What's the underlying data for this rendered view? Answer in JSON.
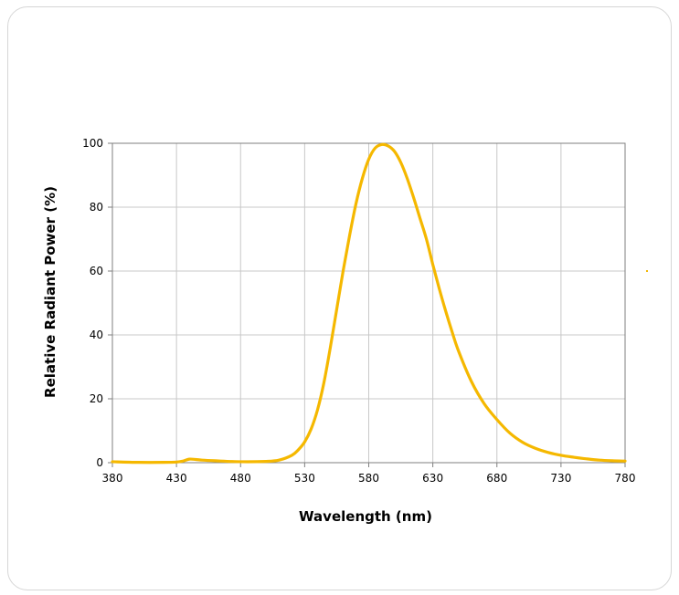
{
  "chart_data": {
    "type": "line",
    "title": "",
    "xlabel": "Wavelength (nm)",
    "ylabel": "Relative Radiant  Power (%)",
    "xlim": [
      380,
      780
    ],
    "ylim": [
      0,
      100
    ],
    "x_ticks": [
      380,
      430,
      480,
      530,
      580,
      630,
      680,
      730,
      780
    ],
    "y_ticks": [
      0,
      20,
      40,
      60,
      80,
      100
    ],
    "grid": true,
    "legend": "none",
    "line_color": "#f5b800",
    "series": [
      {
        "x": [
          380,
          400,
          420,
          430,
          435,
          440,
          445,
          450,
          460,
          480,
          500,
          510,
          520,
          525,
          530,
          535,
          540,
          545,
          550,
          555,
          560,
          565,
          570,
          575,
          580,
          585,
          590,
          595,
          600,
          605,
          610,
          615,
          620,
          625,
          630,
          635,
          640,
          645,
          650,
          660,
          670,
          680,
          690,
          700,
          710,
          720,
          730,
          740,
          750,
          760,
          770,
          780
        ],
        "values": [
          0.3,
          0.1,
          0.1,
          0.2,
          0.5,
          1.1,
          1.0,
          0.8,
          0.6,
          0.3,
          0.4,
          0.8,
          2.3,
          4.0,
          6.5,
          10.5,
          16.5,
          25,
          36,
          48,
          60,
          71,
          81,
          89,
          95,
          98.5,
          99.6,
          99.2,
          97.5,
          94,
          89,
          83,
          76.5,
          70,
          62,
          54.5,
          47.5,
          41,
          35,
          25.5,
          18.5,
          13.5,
          9.3,
          6.4,
          4.5,
          3.2,
          2.3,
          1.7,
          1.2,
          0.8,
          0.6,
          0.5
        ]
      }
    ]
  }
}
